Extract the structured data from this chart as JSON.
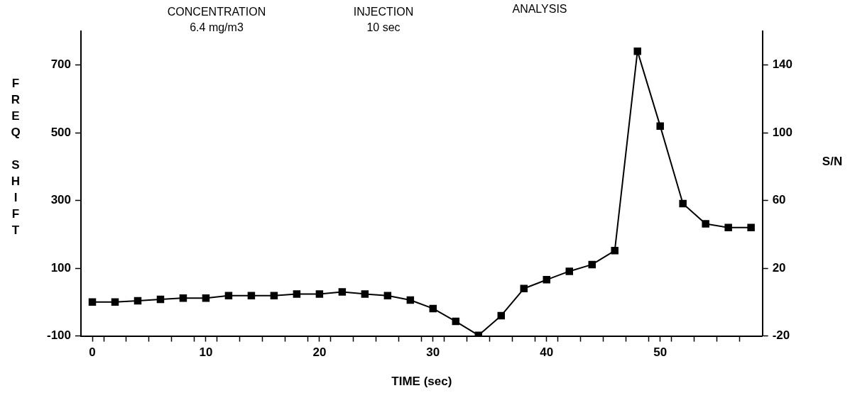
{
  "chart_data": {
    "type": "line",
    "xlabel": "TIME (sec)",
    "ylabel": "FREQ SHIFT",
    "y2label": "S/N",
    "annotations": [
      "CONCENTRATION",
      "6.4 mg/m3",
      "INJECTION",
      "10 sec",
      "ANALYSIS"
    ],
    "x": [
      0,
      2,
      4,
      6,
      8,
      10,
      12,
      14,
      16,
      18,
      20,
      22,
      24,
      26,
      28,
      30,
      32,
      34,
      36,
      38,
      40,
      42,
      44,
      46,
      48,
      50,
      52,
      54,
      56,
      58
    ],
    "series": [
      {
        "color": "#000000",
        "values": [
          0,
          0,
          4,
          8,
          12,
          12,
          19,
          19,
          19,
          24,
          24,
          30,
          24,
          19,
          6,
          -19,
          -57,
          -98,
          -40,
          40,
          66,
          91,
          111,
          152,
          741,
          520,
          291,
          231,
          220,
          220
        ]
      }
    ],
    "xlim": [
      -1,
      59
    ],
    "xticks": [
      0,
      {
        "value": 1,
        "label": null
      },
      {
        "value": 3,
        "label": null
      },
      {
        "value": 5,
        "label": null
      },
      {
        "value": 7,
        "label": null
      },
      {
        "value": 9,
        "label": null
      },
      10,
      {
        "value": 11,
        "label": null
      },
      {
        "value": 13,
        "label": null
      },
      {
        "value": 15,
        "label": null
      },
      {
        "value": 17,
        "label": null
      },
      {
        "value": 19,
        "label": null
      },
      20,
      {
        "value": 21,
        "label": null
      },
      {
        "value": 23,
        "label": null
      },
      {
        "value": 25,
        "label": null
      },
      {
        "value": 27,
        "label": null
      },
      {
        "value": 29,
        "label": null
      },
      30,
      {
        "value": 31,
        "label": null
      },
      {
        "value": 33,
        "label": null
      },
      {
        "value": 35,
        "label": null
      },
      {
        "value": 37,
        "label": null
      },
      {
        "value": 39,
        "label": null
      },
      40,
      {
        "value": 41,
        "label": null
      },
      {
        "value": 43,
        "label": null
      },
      {
        "value": 45,
        "label": null
      },
      {
        "value": 47,
        "label": null
      },
      {
        "value": 49,
        "label": null
      },
      50,
      {
        "value": 51,
        "label": null
      },
      {
        "value": 53,
        "label": null
      },
      {
        "value": 55,
        "label": null
      },
      {
        "value": 57,
        "label": null
      }
    ],
    "ylim": [
      -100,
      800
    ],
    "yticks": [
      -100,
      100,
      300,
      500,
      700
    ],
    "y2lim": [
      -20,
      160
    ],
    "y2ticks": [
      -20,
      20,
      60,
      100,
      140
    ],
    "grid": false,
    "legend": false,
    "marker": "square",
    "line_style": "solid"
  }
}
